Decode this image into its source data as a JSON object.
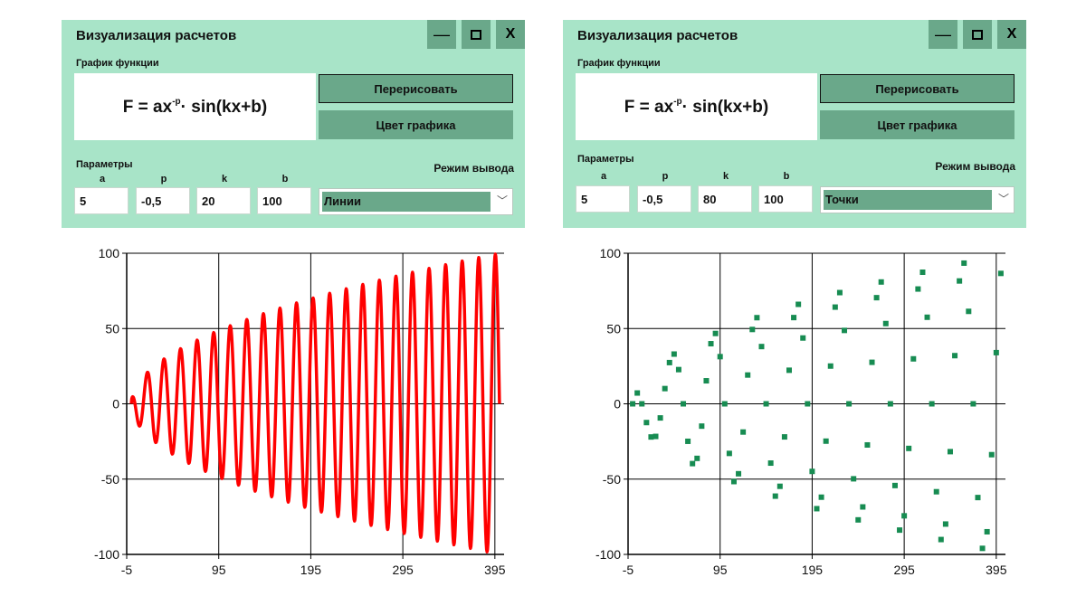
{
  "windows": [
    {
      "title": "Визуализация расчетов",
      "buttons": {
        "minimize": "—",
        "maximize_icon": "maximize-icon",
        "close": "X"
      },
      "section_label": "График функции",
      "formula": {
        "prefix": "F = ax",
        "exponent": "-p",
        "suffix": "· sin(kx+b)"
      },
      "redraw_label": "Перерисовать",
      "color_label": "Цвет графика",
      "params_label": "Параметры",
      "params": [
        {
          "name": "a",
          "value": "5"
        },
        {
          "name": "p",
          "value": "-0,5"
        },
        {
          "name": "k",
          "value": "20"
        },
        {
          "name": "b",
          "value": "100"
        }
      ],
      "mode_label": "Режим вывода",
      "mode_value": "Линии",
      "accent_color": "#6aa88a"
    },
    {
      "title": "Визуализация расчетов",
      "buttons": {
        "minimize": "—",
        "maximize_icon": "maximize-icon",
        "close": "X"
      },
      "section_label": "График функции",
      "formula": {
        "prefix": "F = ax",
        "exponent": "-p",
        "suffix": "· sin(kx+b)"
      },
      "redraw_label": "Перерисовать",
      "color_label": "Цвет графика",
      "params_label": "Параметры",
      "params": [
        {
          "name": "a",
          "value": "5"
        },
        {
          "name": "p",
          "value": "-0,5"
        },
        {
          "name": "k",
          "value": "80"
        },
        {
          "name": "b",
          "value": "100"
        }
      ],
      "mode_label": "Режим вывода",
      "mode_value": "Точки",
      "accent_color": "#6aa88a"
    }
  ],
  "chart_data": [
    {
      "type": "line",
      "color": "#ff0000",
      "function": {
        "a": 5,
        "p": -0.5,
        "k": 20,
        "b": 100
      },
      "xlim": [
        -5,
        405
      ],
      "ylim": [
        -100,
        100
      ],
      "xticks": [
        "-5",
        "95",
        "195",
        "295",
        "395"
      ],
      "yticks": [
        "100",
        "50",
        "0",
        "-50",
        "-100"
      ],
      "grid": true
    },
    {
      "type": "scatter",
      "color": "#178c52",
      "function": {
        "a": 5,
        "p": -0.5,
        "k": 80,
        "b": 100
      },
      "xlim": [
        -5,
        405
      ],
      "ylim": [
        -100,
        100
      ],
      "xticks": [
        "-5",
        "95",
        "195",
        "295",
        "395"
      ],
      "yticks": [
        "100",
        "50",
        "0",
        "-50",
        "-100"
      ],
      "grid": true
    }
  ]
}
